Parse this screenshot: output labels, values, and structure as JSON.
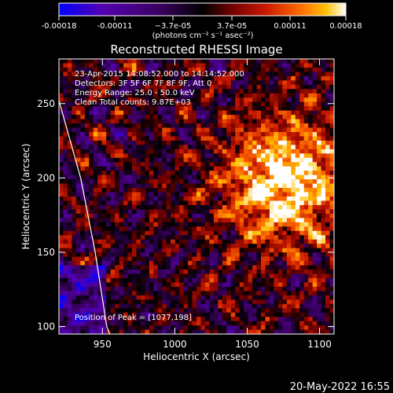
{
  "chart_data": {
    "type": "heatmap",
    "title": "Reconstructed RHESSI Image",
    "xlabel": "Heliocentric X (arcsec)",
    "ylabel": "Heliocentric Y (arcsec)",
    "xlim": [
      920,
      1110
    ],
    "ylim": [
      95,
      280
    ],
    "x_ticks": [
      950,
      1000,
      1050,
      1100
    ],
    "y_ticks": [
      100,
      150,
      200,
      250
    ],
    "colorbar": {
      "range": [
        -0.00018,
        0.00018
      ],
      "tick_values": [
        -0.00018,
        -0.00011,
        -3.7e-05,
        3.7e-05,
        0.00011,
        0.00018
      ],
      "tick_labels": [
        "-0.00018",
        "-0.00011",
        "−3.7e-05",
        "3.7e-05",
        "0.00011",
        "0.00018"
      ],
      "unit_label": "(photons cm⁻² s⁻¹ asec⁻²)"
    },
    "annotations": {
      "time": "23-Apr-2015 14:08:52.000 to 14:14:52.000",
      "detectors": "Detectors: 3F 5F 6F 7F 8F 9F, Att 0",
      "energy": "Energy Range: 25.0 - 50.0 keV",
      "method": "Clean     Total counts: 9.87E+03",
      "peak": "Position of Peak = [1077,198]"
    },
    "limb_curve": [
      [
        920,
        252
      ],
      [
        935,
        200
      ],
      [
        945,
        150
      ],
      [
        953,
        100
      ],
      [
        955,
        95
      ]
    ],
    "grid": false,
    "colormap": [
      "#0000ff",
      "#5500b0",
      "#3a0060",
      "#000000",
      "#700000",
      "#c81800",
      "#ff6a00",
      "#ffc000",
      "#ffffff"
    ]
  },
  "footer": {
    "date": "20-May-2022 16:55"
  }
}
